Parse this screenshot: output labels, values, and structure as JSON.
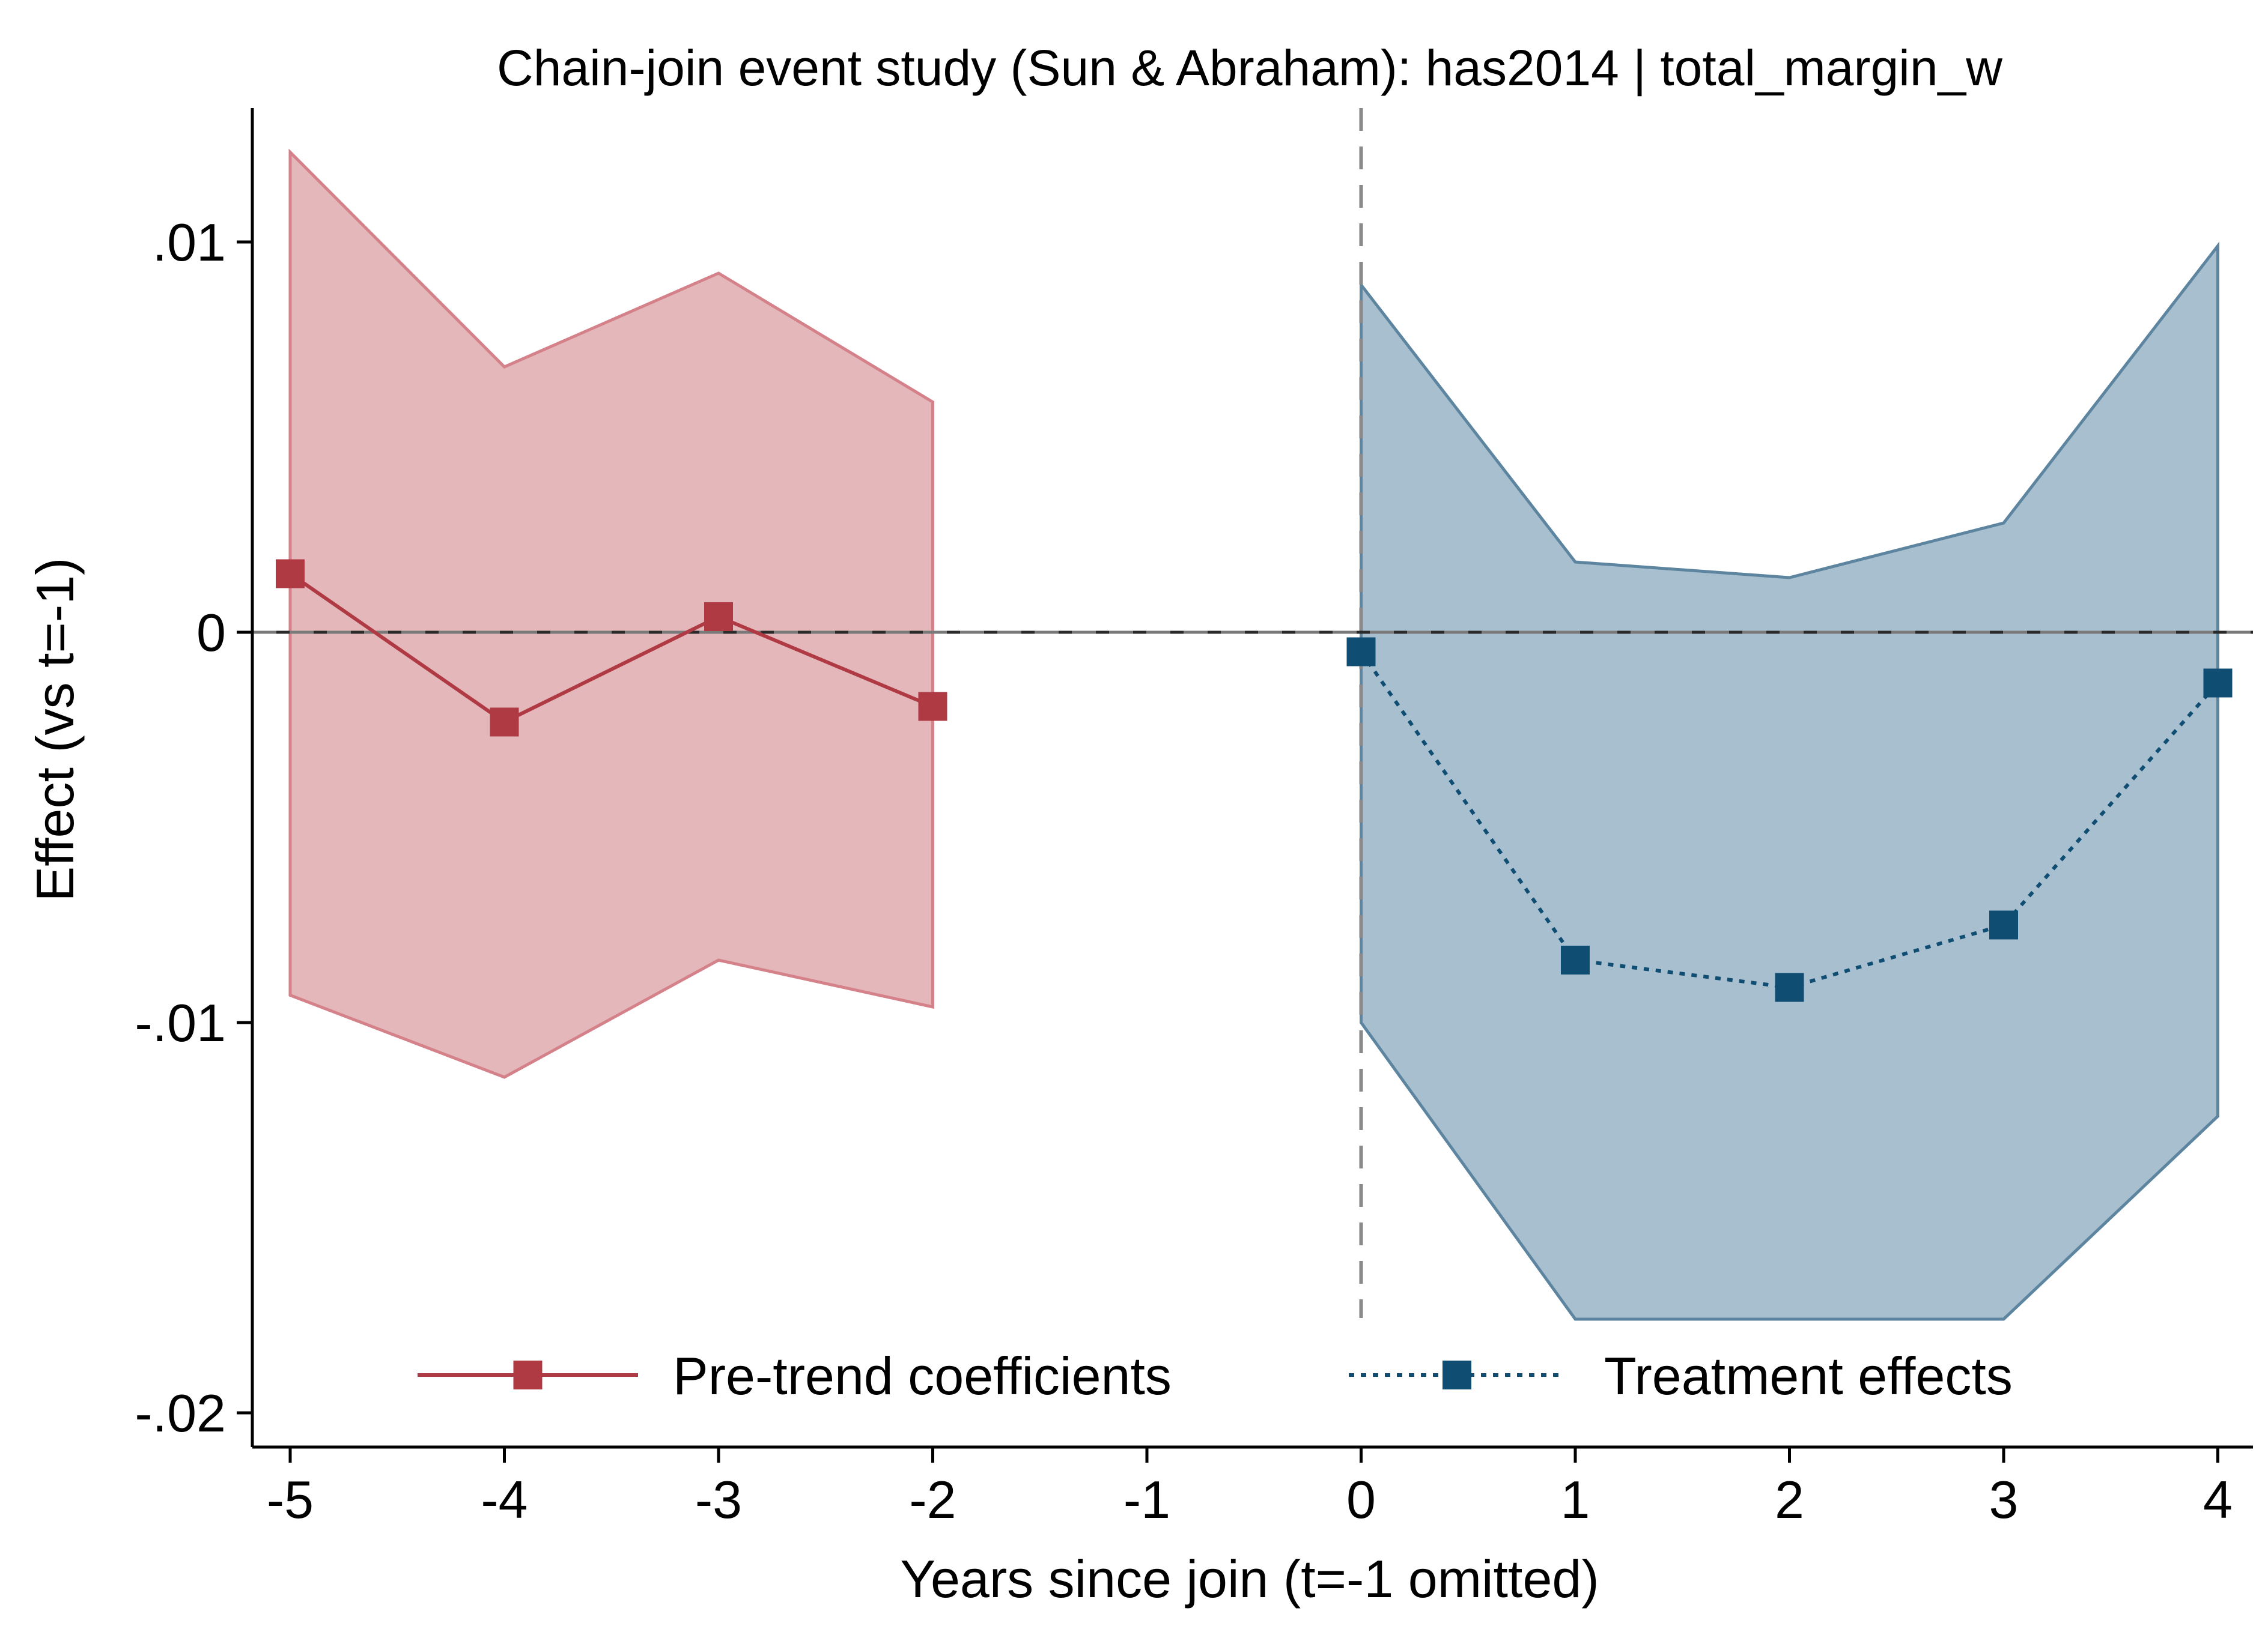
{
  "chart_data": {
    "type": "line",
    "title": "Chain-join event study (Sun & Abraham): has2014 | total_margin_w",
    "xlabel": "Years since join (t=-1 omitted)",
    "ylabel": "Effect (vs t=-1)",
    "xlim": [
      -5.2,
      4.2
    ],
    "ylim": [
      -0.021,
      0.0133
    ],
    "x_ticks": [
      -5,
      -4,
      -3,
      -2,
      -1,
      0,
      1,
      2,
      3,
      4
    ],
    "x_tick_labels": [
      "-5",
      "-4",
      "-3",
      "-2",
      "-1",
      "0",
      "1",
      "2",
      "3",
      "4"
    ],
    "y_ticks": [
      0.01,
      0,
      -0.01,
      -0.02
    ],
    "y_tick_labels": [
      ".01",
      "0",
      "-.01",
      "-.02"
    ],
    "grid": false,
    "reference_lines": {
      "horizontal_at": 0,
      "vertical_at": 0
    },
    "legend": {
      "placement": "bottom-inside",
      "columns": 2
    },
    "series": [
      {
        "name": "Pre-trend coefficients",
        "color": "#b03a44",
        "band_fill": "#e4b7bb",
        "band_stroke": "#d48189",
        "line_style": "solid",
        "x": [
          -5,
          -4,
          -3,
          -2
        ],
        "y": [
          0.0015,
          -0.0023,
          0.0004,
          -0.0019
        ],
        "ci_low": [
          -0.0093,
          -0.0114,
          -0.0084,
          -0.0096
        ],
        "ci_high": [
          0.0123,
          0.0068,
          0.0092,
          0.0059
        ]
      },
      {
        "name": "Treatment effects",
        "color": "#0f4d73",
        "band_fill": "#a8bfcf",
        "band_stroke": "#5d85a0",
        "line_style": "dotted",
        "x": [
          0,
          1,
          2,
          3,
          4
        ],
        "y": [
          -0.0005,
          -0.0084,
          -0.0091,
          -0.0075,
          -0.0013
        ],
        "ci_low": [
          -0.01,
          -0.0176,
          -0.0176,
          -0.0176,
          -0.0124
        ],
        "ci_high": [
          0.0089,
          0.0018,
          0.0014,
          0.0028,
          0.0099
        ]
      }
    ]
  }
}
